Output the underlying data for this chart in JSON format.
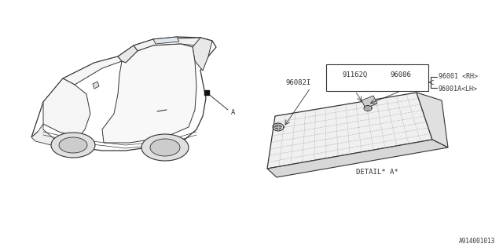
{
  "bg_color": "#ffffff",
  "line_color": "#333333",
  "text_color": "#333333",
  "title_bottom": "A914001013",
  "detail_label": "DETAIL* A*",
  "label_91162Q": "91162Q",
  "label_96086": "96086",
  "label_96082I": "96082I",
  "label_rh": "96001 <RH>",
  "label_lh": "96001A<LH>",
  "label_A": "A",
  "font_size_small": 6.5,
  "font_size_ref": 5.5,
  "car_scale": 1.0,
  "panel_scale": 1.0
}
